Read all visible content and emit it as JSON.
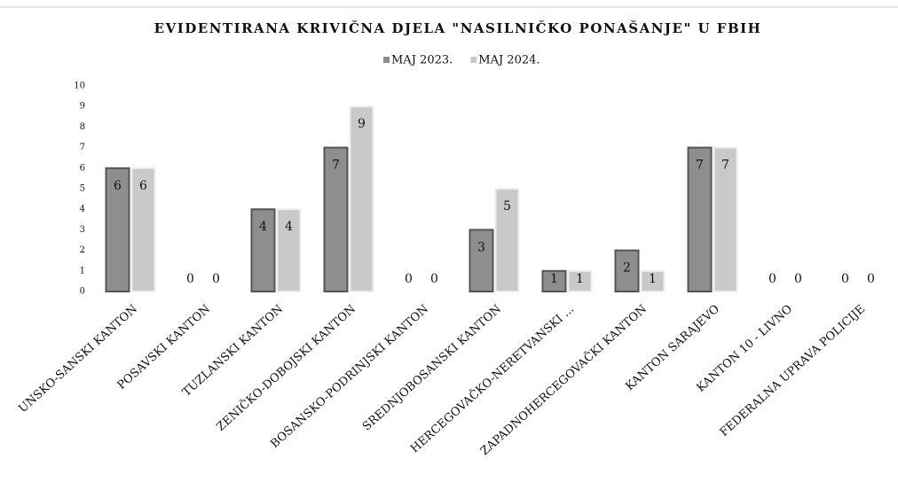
{
  "chart_data": {
    "type": "bar",
    "title": "EVIDENTIRANA KRIVIČNA DJELA \"NASILNIČKO PONAŠANJE\" U FBIH",
    "categories": [
      "UNSKO-SANSKI KANTON",
      "POSAVSKI KANTON",
      "TUZLANSKI KANTON",
      "ZENIČKO-DOBOJSKI KANTON",
      "BOSANSKO-PODRINJSKI KANTON",
      "SREDNJOBOSANSKI KANTON",
      "HERCEGOVAČKO-NERETVANSKI ...",
      "ZAPADNOHERCEGOVAČKI KANTON",
      "KANTON SARAJEVO",
      "KANTON 10 - LIVNO",
      "FEDERALNA UPRAVA POLICIJE"
    ],
    "series": [
      {
        "name": "MAJ 2023.",
        "color": "#8e8e8e",
        "values": [
          6,
          0,
          4,
          7,
          0,
          3,
          1,
          2,
          7,
          0,
          0
        ]
      },
      {
        "name": "MAJ 2024.",
        "color": "#c9c9c9",
        "values": [
          6,
          0,
          4,
          9,
          0,
          5,
          1,
          1,
          7,
          0,
          0
        ]
      }
    ],
    "ylim": [
      0,
      10
    ],
    "yticks": [
      0,
      1,
      2,
      3,
      4,
      5,
      6,
      7,
      8,
      9,
      10
    ],
    "grid": false,
    "legend": "top"
  }
}
